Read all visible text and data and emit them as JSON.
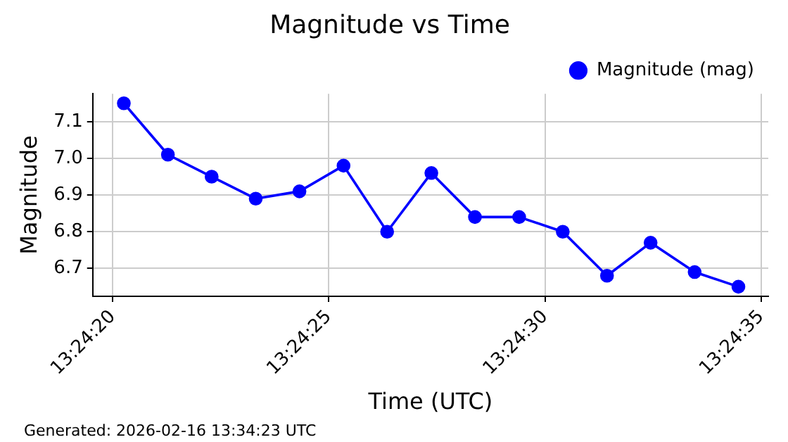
{
  "chart_data": {
    "type": "line",
    "title": "Magnitude vs Time",
    "xlabel": "Time (UTC)",
    "ylabel": "Magnitude",
    "x": [
      13.405628,
      13.405911,
      13.406192,
      13.406475,
      13.406756,
      13.407039,
      13.407319,
      13.407603,
      13.407883,
      13.408167,
      13.408447,
      13.408731,
      13.409011,
      13.409294,
      13.409575
    ],
    "series": [
      {
        "name": "Magnitude (mag)",
        "color": "#0000ff",
        "values": [
          7.15,
          7.01,
          6.95,
          6.89,
          6.91,
          6.98,
          6.8,
          6.96,
          6.84,
          6.84,
          6.8,
          6.68,
          6.77,
          6.69,
          6.65
        ]
      }
    ],
    "xlim": [
      13.405428,
      13.409767
    ],
    "xticks": [
      {
        "value": 13.405556,
        "label": "13:24:20"
      },
      {
        "value": 13.406944,
        "label": "13:24:25"
      },
      {
        "value": 13.408333,
        "label": "13:24:30"
      },
      {
        "value": 13.409722,
        "label": "13:24:35"
      }
    ],
    "ylim": [
      6.624,
      7.176
    ],
    "yticks": [
      6.7,
      6.8,
      6.9,
      {
        "value": 7,
        "label": "7.0"
      },
      7.1
    ],
    "grid": true,
    "legend": "top right",
    "marker": "circle",
    "line_style": "solid",
    "annotations": [
      "Generated: 2026-02-16 13:34:23 UTC"
    ]
  }
}
